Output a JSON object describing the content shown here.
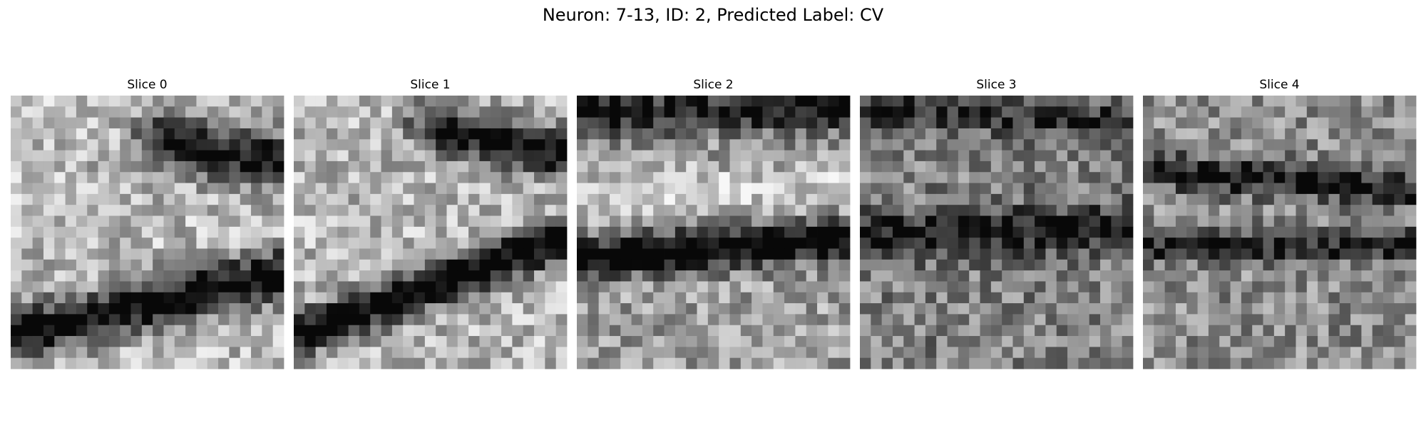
{
  "title": "Neuron: 7-13, ID: 2, Predicted Label: CV",
  "panels": [
    {
      "title": "Slice 0"
    },
    {
      "title": "Slice 1"
    },
    {
      "title": "Slice 2"
    },
    {
      "title": "Slice 3"
    },
    {
      "title": "Slice 4"
    }
  ]
}
